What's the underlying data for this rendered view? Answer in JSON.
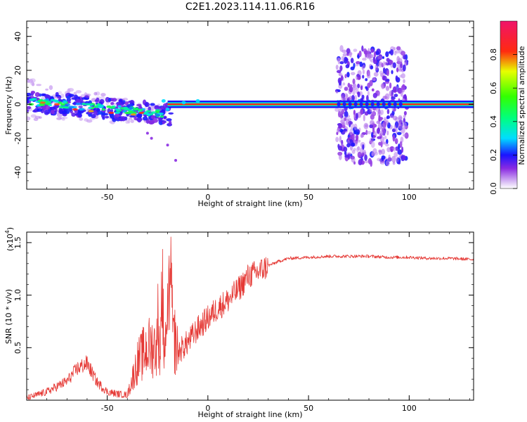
{
  "title": "C2E1.2023.114.11.06.R16",
  "colors": {
    "snr_line": "#e53935",
    "tone": "#ff2a10",
    "background": "#ffffff"
  },
  "chart_data": [
    {
      "type": "heatmap",
      "title": "C2E1.2023.114.11.06.R16",
      "xlabel": "Height of straight line (km)",
      "ylabel": "Frequency (Hz)",
      "xlim": [
        -90,
        132
      ],
      "ylim": [
        -50,
        49
      ],
      "x_ticks": [
        -50,
        0,
        50,
        100
      ],
      "y_ticks": [
        40,
        20,
        0,
        -20,
        -40
      ],
      "colorbar": {
        "label": "Normalized spectral amplitude",
        "range": [
          0,
          1
        ],
        "ticks": [
          0.0,
          0.2,
          0.4,
          0.6,
          0.8
        ],
        "tick_labels": [
          "0.0",
          "0.2",
          "0.4",
          "0.6",
          "0.8"
        ]
      },
      "features": [
        {
          "name": "carrier line",
          "x_range": [
            -20,
            132
          ],
          "freq": 0
        },
        {
          "name": "drifting scattered signal",
          "x_range": [
            -90,
            -20
          ],
          "freq_start": 2,
          "freq_end": -6
        },
        {
          "name": "broadband scatter",
          "x_range": [
            64,
            99
          ],
          "freq_range": [
            -35,
            33
          ]
        }
      ]
    },
    {
      "type": "line",
      "xlabel": "Height of straight line (km)",
      "ylabel": "SNR (10 * v/v)",
      "y_multiplier": "(x10",
      "y_multiplier_exp": "4",
      "y_multiplier_close": ")",
      "xlim": [
        -90,
        132
      ],
      "ylim": [
        0,
        1.6
      ],
      "x_ticks": [
        -50,
        0,
        50,
        100
      ],
      "y_ticks": [
        0.5,
        1.0,
        1.5
      ],
      "y_tick_labels": [
        "0.5",
        "1.0",
        "1.5"
      ],
      "series": [
        {
          "x": [
            -90,
            -80,
            -70,
            -65,
            -60,
            -55,
            -50,
            -45,
            -40,
            -35,
            -30,
            -25,
            -22,
            -20,
            -18,
            -15,
            -10,
            -5,
            0,
            5,
            10,
            15,
            20,
            25,
            30,
            35,
            40,
            50,
            60,
            70,
            80,
            90,
            100,
            110,
            120,
            132
          ],
          "y": [
            0.02,
            0.08,
            0.18,
            0.3,
            0.35,
            0.17,
            0.08,
            0.06,
            0.05,
            0.36,
            0.5,
            0.52,
            0.7,
            0.95,
            0.72,
            0.45,
            0.55,
            0.68,
            0.78,
            0.88,
            0.95,
            1.05,
            1.18,
            1.22,
            1.28,
            1.32,
            1.35,
            1.36,
            1.37,
            1.37,
            1.37,
            1.36,
            1.36,
            1.35,
            1.35,
            1.34
          ]
        }
      ]
    }
  ]
}
